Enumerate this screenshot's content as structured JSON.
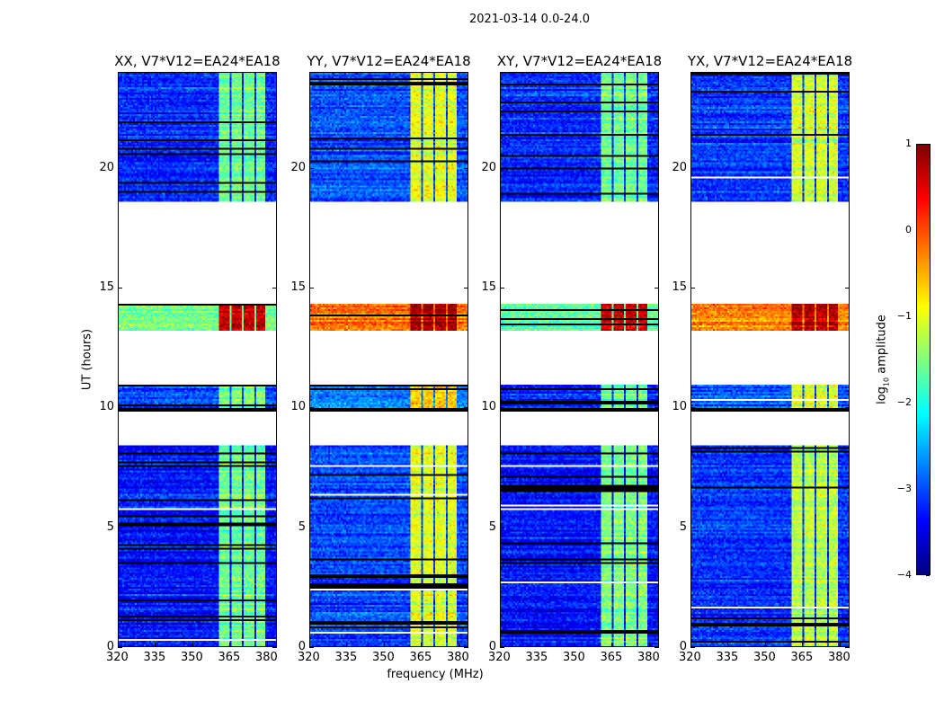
{
  "chart_data": {
    "type": "heatmap",
    "title": "2021-03-14 0.0-24.0",
    "xlabel": "frequency (MHz)",
    "ylabel": "UT (hours)",
    "xlim": [
      320,
      384
    ],
    "ylim": [
      0,
      24
    ],
    "xticks": [
      "320",
      "335",
      "350",
      "365",
      "380"
    ],
    "xtick_values": [
      320,
      335,
      350,
      365,
      380
    ],
    "yticks": [
      "0",
      "5",
      "10",
      "15",
      "20"
    ],
    "ytick_values": [
      0,
      5,
      10,
      15,
      20
    ],
    "panels": [
      {
        "title": "XX, V7*V12=EA24*EA18"
      },
      {
        "title": "YY, V7*V12=EA24*EA18"
      },
      {
        "title": "XY, V7*V12=EA24*EA18"
      },
      {
        "title": "YX, V7*V12=EA24*EA18"
      }
    ],
    "band_mhz": [
      360.4,
      380
    ],
    "band_flagged_channels_mhz": [
      365.5,
      370.5,
      375.5
    ],
    "segments": [
      {
        "start_hr": 0.0,
        "end_hr": 8.4,
        "background_log_amp": [
          -3.3,
          -3.0,
          -3.3,
          -3.1
        ],
        "band_log_amp": [
          -1.6,
          -1.0,
          -1.5,
          -1.2
        ]
      },
      {
        "start_hr": 9.85,
        "end_hr": 10.0,
        "flagged": true
      },
      {
        "start_hr": 10.0,
        "end_hr": 10.95,
        "background_log_amp": [
          -3.0,
          -2.7,
          -3.2,
          -2.9
        ],
        "band_log_amp": [
          -1.5,
          -0.6,
          -1.6,
          -1.0
        ]
      },
      {
        "start_hr": 13.2,
        "end_hr": 14.3,
        "background_log_amp": [
          -1.5,
          -0.2,
          -1.7,
          -0.3
        ],
        "band_log_amp": [
          0.7,
          0.8,
          0.6,
          0.7
        ]
      },
      {
        "start_hr": 18.6,
        "end_hr": 24.0,
        "background_log_amp": [
          -3.2,
          -3.0,
          -3.2,
          -3.1
        ],
        "band_log_amp": [
          -1.6,
          -1.0,
          -1.6,
          -1.1
        ]
      }
    ],
    "colorbar": {
      "label": "log10 amplitude",
      "label_main": "log",
      "label_sub": "10",
      "label_rest": " amplitude",
      "range": [
        -4,
        1
      ],
      "ticks": [
        "1",
        "0",
        "−1",
        "−2",
        "−3",
        "−4"
      ],
      "tick_values": [
        1,
        0,
        -1,
        -2,
        -3,
        -4
      ],
      "colormap": "jet"
    }
  }
}
